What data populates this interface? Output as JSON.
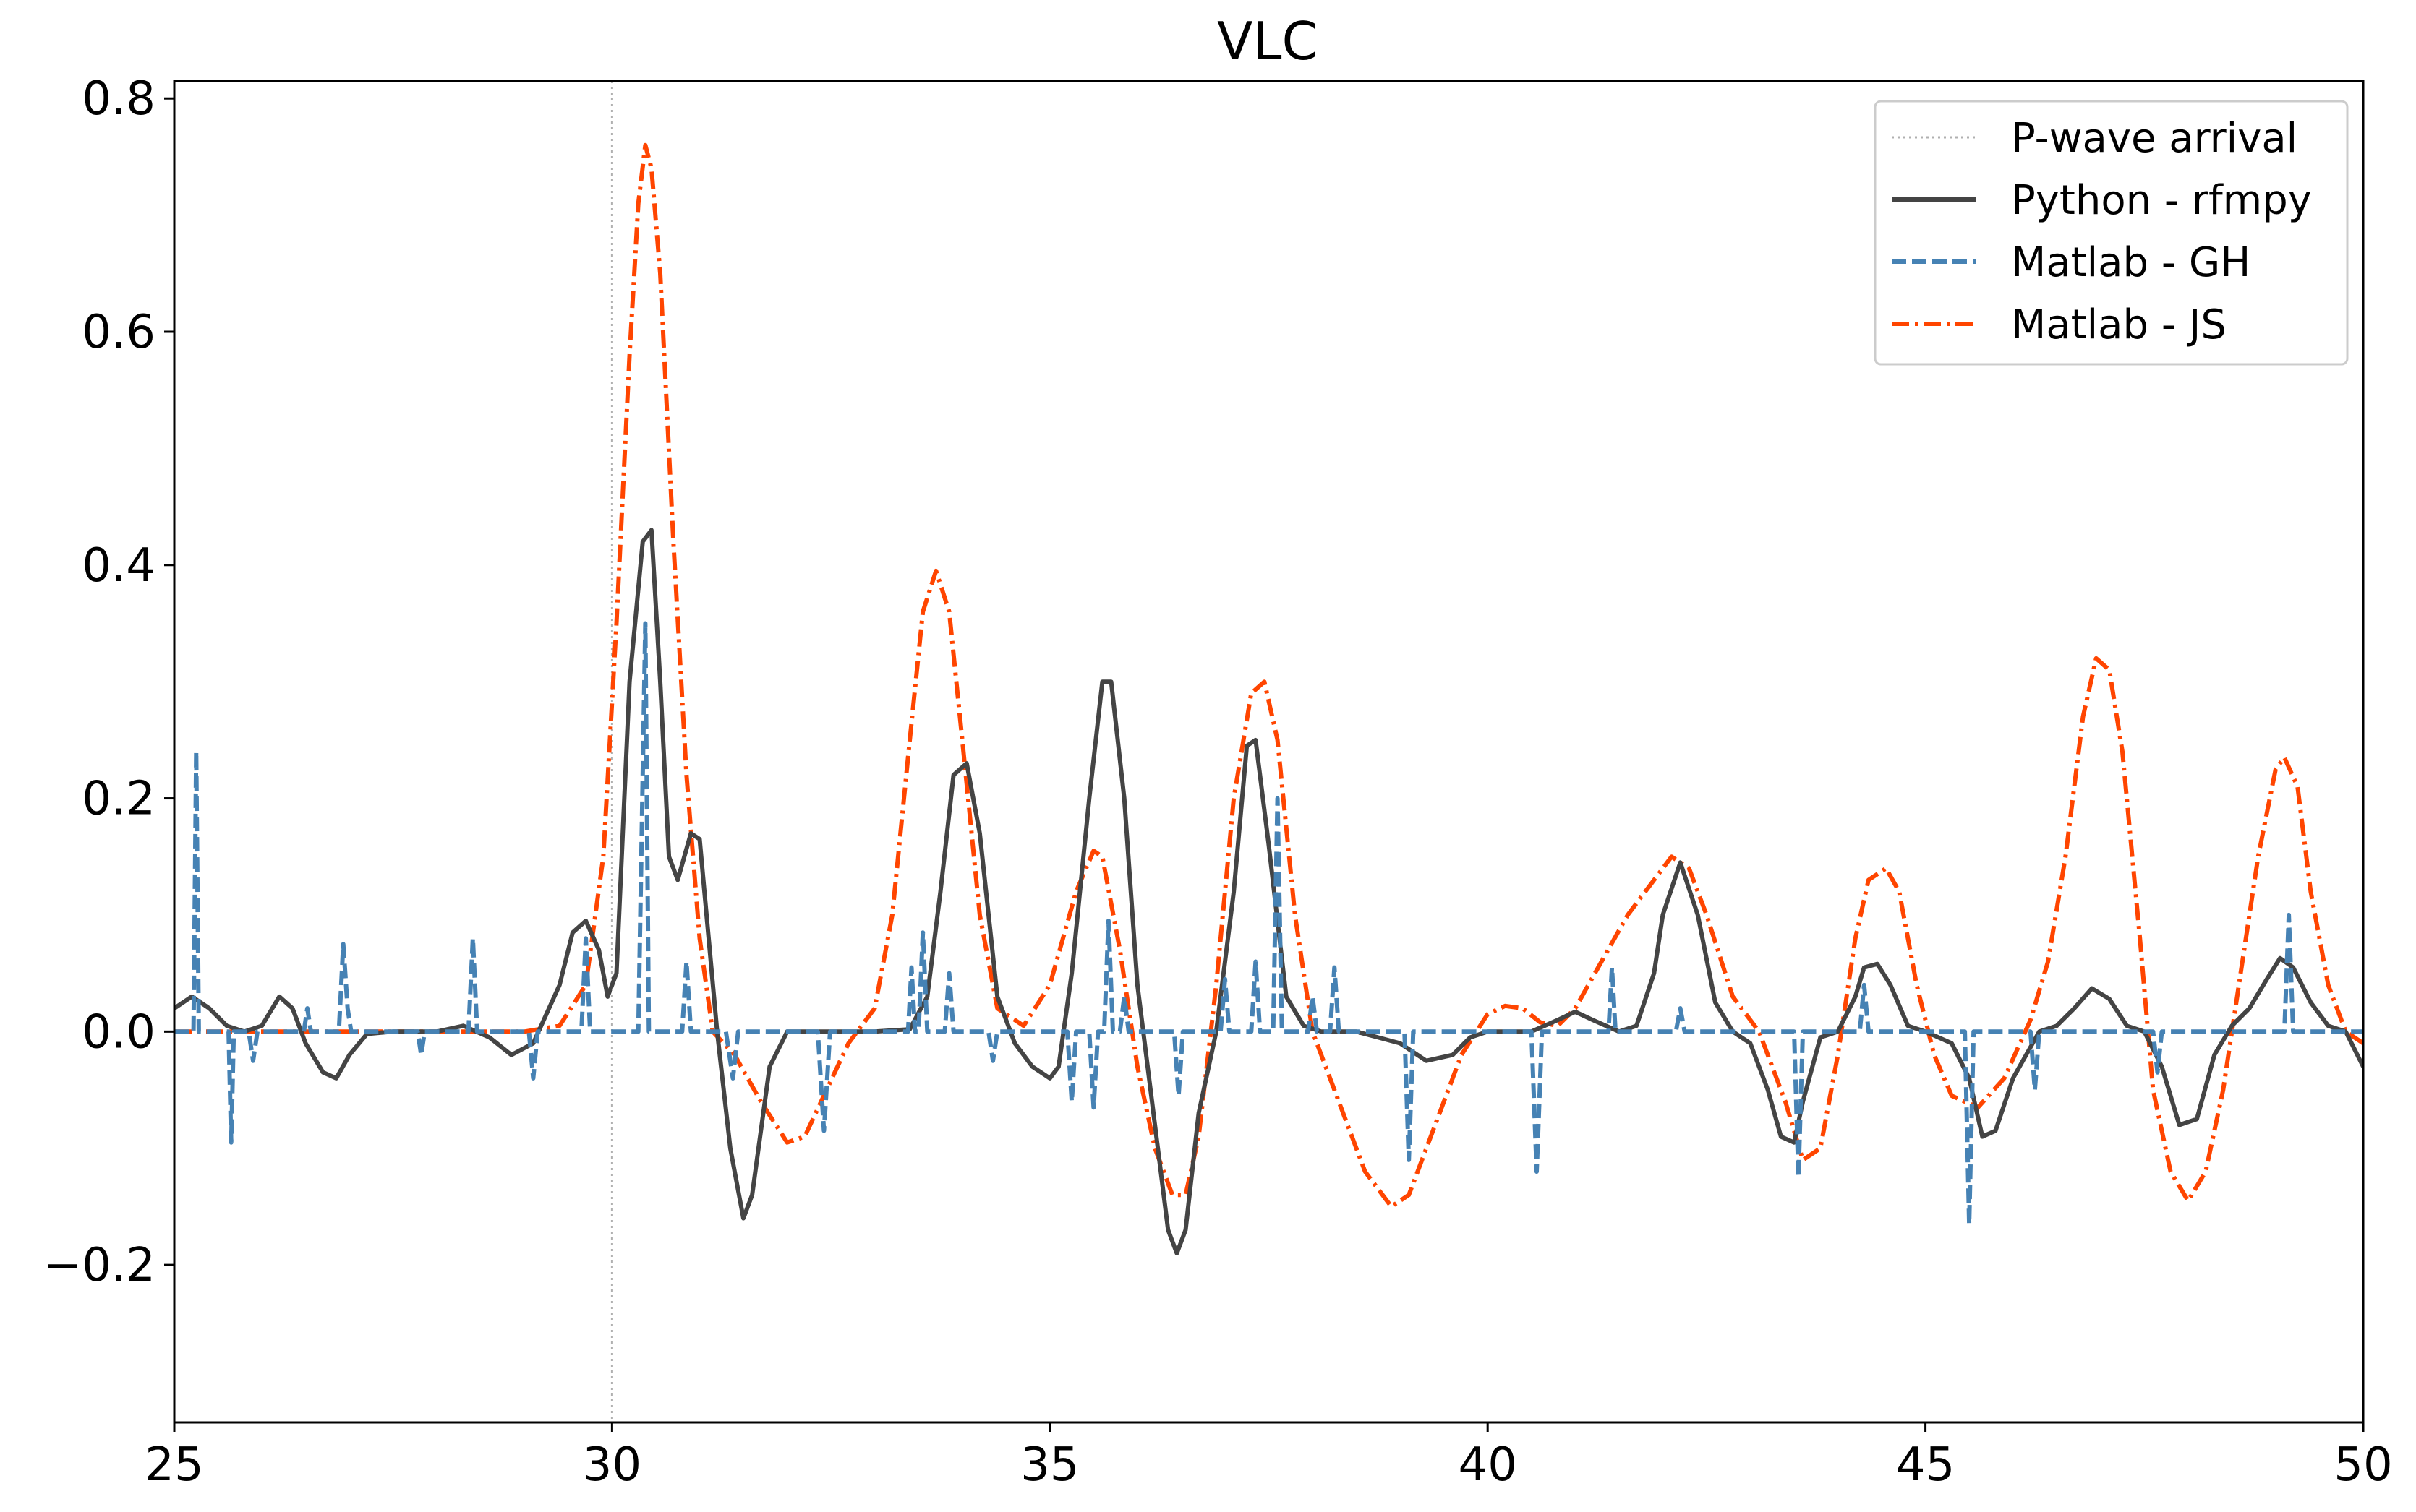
{
  "chart_data": {
    "type": "line",
    "title": "VLC",
    "xlabel": "",
    "ylabel": "",
    "xlim": [
      25,
      50
    ],
    "ylim": [
      -0.335,
      0.815
    ],
    "xticks": [
      25,
      30,
      35,
      40,
      45,
      50
    ],
    "xtick_labels": [
      "25",
      "30",
      "35",
      "40",
      "45",
      "50"
    ],
    "yticks": [
      -0.2,
      0.0,
      0.2,
      0.4,
      0.6,
      0.8
    ],
    "ytick_labels": [
      "−0.2",
      "0.0",
      "0.2",
      "0.4",
      "0.6",
      "0.8"
    ],
    "grid": false,
    "legend_position": "top-right",
    "p_wave_arrival": {
      "name": "P-wave arrival",
      "x": 30,
      "color": "#b0b0b0"
    },
    "series": [
      {
        "name": "Python - rfmpy",
        "color": "#444444",
        "style": "solid",
        "x": [
          25,
          25.2,
          25.4,
          25.6,
          25.8,
          26,
          26.2,
          26.35,
          26.5,
          26.7,
          26.85,
          27,
          27.2,
          27.5,
          28,
          28.3,
          28.6,
          28.85,
          29.1,
          29.4,
          29.55,
          29.7,
          29.85,
          29.95,
          30.05,
          30.2,
          30.35,
          30.45,
          30.55,
          30.65,
          30.75,
          30.9,
          31.0,
          31.2,
          31.35,
          31.5,
          31.6,
          31.8,
          32,
          32.5,
          33,
          33.4,
          33.6,
          33.75,
          33.9,
          34.05,
          34.2,
          34.4,
          34.6,
          34.8,
          35.0,
          35.1,
          35.25,
          35.45,
          35.6,
          35.7,
          35.85,
          36.0,
          36.2,
          36.35,
          36.45,
          36.55,
          36.7,
          36.9,
          37.1,
          37.25,
          37.35,
          37.5,
          37.7,
          37.9,
          38.1,
          38.5,
          39,
          39.3,
          39.6,
          39.8,
          40,
          40.5,
          40.8,
          41.0,
          41.2,
          41.5,
          41.7,
          41.9,
          42.0,
          42.2,
          42.4,
          42.6,
          42.8,
          43.0,
          43.2,
          43.35,
          43.5,
          43.6,
          43.8,
          44.0,
          44.2,
          44.3,
          44.45,
          44.6,
          44.8,
          45.0,
          45.3,
          45.5,
          45.65,
          45.8,
          46.0,
          46.3,
          46.5,
          46.7,
          46.9,
          47.1,
          47.3,
          47.5,
          47.7,
          47.9,
          48.1,
          48.3,
          48.5,
          48.7,
          48.9,
          49.05,
          49.2,
          49.4,
          49.6,
          49.8,
          50
        ],
        "y": [
          0.02,
          0.03,
          0.02,
          0.005,
          0.0,
          0.005,
          0.03,
          0.02,
          -0.01,
          -0.035,
          -0.04,
          -0.02,
          -0.002,
          0.0,
          0.0,
          0.005,
          -0.005,
          -0.02,
          -0.01,
          0.04,
          0.085,
          0.095,
          0.07,
          0.03,
          0.05,
          0.3,
          0.42,
          0.43,
          0.3,
          0.15,
          0.13,
          0.17,
          0.165,
          0.0,
          -0.1,
          -0.16,
          -0.14,
          -0.03,
          0.0,
          0.0,
          0.0,
          0.002,
          0.03,
          0.12,
          0.22,
          0.23,
          0.17,
          0.03,
          -0.01,
          -0.03,
          -0.04,
          -0.03,
          0.05,
          0.2,
          0.3,
          0.3,
          0.2,
          0.04,
          -0.08,
          -0.17,
          -0.19,
          -0.17,
          -0.07,
          0.0,
          0.12,
          0.245,
          0.25,
          0.16,
          0.03,
          0.005,
          0.0,
          0.0,
          -0.01,
          -0.025,
          -0.02,
          -0.005,
          0.0,
          0.0,
          0.01,
          0.017,
          0.01,
          0.0,
          0.005,
          0.05,
          0.1,
          0.145,
          0.1,
          0.025,
          0.0,
          -0.01,
          -0.05,
          -0.09,
          -0.095,
          -0.06,
          -0.005,
          0.0,
          0.03,
          0.055,
          0.058,
          0.04,
          0.005,
          0.0,
          -0.01,
          -0.04,
          -0.09,
          -0.085,
          -0.04,
          0.0,
          0.005,
          0.02,
          0.037,
          0.028,
          0.005,
          0.0,
          -0.03,
          -0.08,
          -0.075,
          -0.02,
          0.005,
          0.02,
          0.045,
          0.063,
          0.055,
          0.025,
          0.005,
          0.0,
          -0.03
        ]
      },
      {
        "name": "Matlab - GH",
        "color": "#4682b4",
        "style": "dashed",
        "x": [
          25,
          25.22,
          25.25,
          25.28,
          25.32,
          25.62,
          25.65,
          25.68,
          25.72,
          25.85,
          25.9,
          25.95,
          26.48,
          26.52,
          26.56,
          26.88,
          26.93,
          26.98,
          27.02,
          27.78,
          27.82,
          27.86,
          28.36,
          28.41,
          28.46,
          28.9,
          29.05,
          29.1,
          29.15,
          29.2,
          29.65,
          29.7,
          29.75,
          30.3,
          30.38,
          30.42,
          30.46,
          30.8,
          30.85,
          30.9,
          31.3,
          31.38,
          31.44,
          31.5,
          32.35,
          32.42,
          32.49,
          33.38,
          33.42,
          33.46,
          33.5,
          33.55,
          33.6,
          33.8,
          33.85,
          33.9,
          34.3,
          34.35,
          34.4,
          35.2,
          35.25,
          35.3,
          35.45,
          35.5,
          35.55,
          35.62,
          35.67,
          35.72,
          35.8,
          35.85,
          35.9,
          36.42,
          36.47,
          36.52,
          36.95,
          37.0,
          37.05,
          37.3,
          37.35,
          37.4,
          37.55,
          37.6,
          37.65,
          37.95,
          38.0,
          38.05,
          38.2,
          38.25,
          38.3,
          39.05,
          39.1,
          39.15,
          39.2,
          40.5,
          40.56,
          40.62,
          41.38,
          41.42,
          41.46,
          42.15,
          42.2,
          42.25,
          43.5,
          43.55,
          43.6,
          43.65,
          44.25,
          44.3,
          44.35,
          45.45,
          45.5,
          45.55,
          45.6,
          46.2,
          46.25,
          46.3,
          47.6,
          47.65,
          47.7,
          49.1,
          49.15,
          49.2,
          49.9,
          50
        ],
        "y": [
          0.0,
          0.0,
          0.24,
          0.0,
          0.0,
          0.0,
          -0.095,
          0.0,
          0.0,
          0.0,
          -0.025,
          0.0,
          0.0,
          0.02,
          0.0,
          0.0,
          0.075,
          0.02,
          0.0,
          0.0,
          -0.02,
          0.0,
          0.0,
          0.08,
          0.0,
          0.0,
          0.0,
          -0.04,
          0.0,
          0.0,
          0.0,
          0.08,
          0.0,
          0.0,
          0.35,
          0.0,
          0.0,
          0.0,
          0.06,
          0.0,
          0.0,
          -0.04,
          0.0,
          0.0,
          0.0,
          -0.085,
          0.0,
          0.0,
          0.055,
          0.0,
          0.0,
          0.085,
          0.0,
          0.0,
          0.05,
          0.0,
          0.0,
          -0.025,
          0.0,
          0.0,
          -0.06,
          0.0,
          0.0,
          -0.065,
          0.0,
          0.0,
          0.095,
          0.0,
          0.0,
          0.03,
          0.0,
          0.0,
          -0.055,
          0.0,
          0.0,
          0.045,
          0.0,
          0.0,
          0.06,
          0.0,
          0.0,
          0.2,
          0.0,
          0.0,
          0.03,
          0.0,
          0.0,
          0.055,
          0.0,
          0.0,
          -0.11,
          0.0,
          0.0,
          0.0,
          -0.12,
          0.0,
          0.0,
          0.055,
          0.0,
          0.0,
          0.02,
          0.0,
          0.0,
          -0.125,
          0.0,
          0.0,
          0.0,
          0.04,
          0.0,
          0.0,
          -0.165,
          0.0,
          0.0,
          0.0,
          -0.05,
          0.0,
          0.0,
          -0.035,
          0.0,
          0.0,
          0.1,
          0.0,
          0.0,
          0.0
        ]
      },
      {
        "name": "Matlab - JS",
        "color": "#ff4500",
        "style": "dashdot",
        "x": [
          25,
          29,
          29.4,
          29.7,
          29.9,
          30.05,
          30.2,
          30.3,
          30.38,
          30.45,
          30.55,
          30.7,
          30.85,
          31.0,
          31.15,
          31.4,
          31.7,
          32.0,
          32.2,
          32.45,
          32.7,
          33.0,
          33.2,
          33.4,
          33.55,
          33.7,
          33.85,
          34.0,
          34.2,
          34.4,
          34.7,
          35.0,
          35.3,
          35.5,
          35.6,
          35.8,
          36.0,
          36.2,
          36.4,
          36.55,
          36.7,
          36.9,
          37.1,
          37.3,
          37.45,
          37.6,
          37.8,
          38.0,
          38.3,
          38.6,
          38.9,
          39.1,
          39.4,
          39.7,
          40.0,
          40.2,
          40.4,
          40.6,
          40.8,
          41.0,
          41.3,
          41.6,
          41.9,
          42.1,
          42.3,
          42.5,
          42.8,
          43.1,
          43.4,
          43.6,
          43.8,
          44.0,
          44.2,
          44.35,
          44.55,
          44.7,
          44.9,
          45.1,
          45.3,
          45.6,
          45.9,
          46.2,
          46.4,
          46.6,
          46.8,
          46.95,
          47.1,
          47.25,
          47.45,
          47.6,
          47.8,
          48.0,
          48.2,
          48.4,
          48.6,
          48.8,
          49.0,
          49.1,
          49.25,
          49.4,
          49.6,
          49.8,
          50
        ],
        "y": [
          0.0,
          0.0,
          0.005,
          0.04,
          0.15,
          0.35,
          0.58,
          0.71,
          0.76,
          0.74,
          0.65,
          0.42,
          0.22,
          0.08,
          0.0,
          -0.02,
          -0.06,
          -0.095,
          -0.09,
          -0.05,
          -0.01,
          0.02,
          0.1,
          0.25,
          0.36,
          0.395,
          0.36,
          0.25,
          0.1,
          0.02,
          0.005,
          0.04,
          0.12,
          0.155,
          0.15,
          0.07,
          -0.03,
          -0.1,
          -0.14,
          -0.14,
          -0.09,
          0.04,
          0.2,
          0.29,
          0.3,
          0.25,
          0.1,
          0.0,
          -0.06,
          -0.12,
          -0.15,
          -0.14,
          -0.08,
          -0.02,
          0.015,
          0.022,
          0.02,
          0.008,
          0.005,
          0.02,
          0.06,
          0.1,
          0.13,
          0.15,
          0.14,
          0.1,
          0.03,
          0.0,
          -0.06,
          -0.11,
          -0.1,
          -0.02,
          0.08,
          0.13,
          0.14,
          0.12,
          0.04,
          -0.02,
          -0.055,
          -0.065,
          -0.04,
          0.01,
          0.06,
          0.15,
          0.27,
          0.32,
          0.31,
          0.24,
          0.08,
          -0.05,
          -0.12,
          -0.145,
          -0.12,
          -0.05,
          0.05,
          0.15,
          0.225,
          0.235,
          0.21,
          0.12,
          0.04,
          0.0,
          -0.01
        ]
      }
    ]
  }
}
